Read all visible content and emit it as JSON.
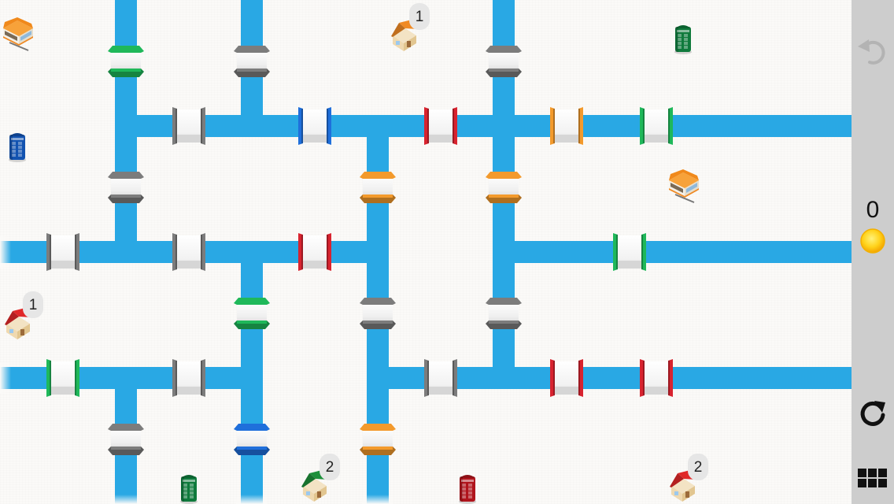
{
  "game": {
    "name": "",
    "colors": {
      "road": "#29a8e4",
      "gate_green": "#1fb85a",
      "gate_gray": "#7c7c7c",
      "gate_blue": "#1f6fdb",
      "gate_red": "#d8232f",
      "gate_orange": "#f39a2c",
      "sidebar": "#cdcdcd",
      "background": "#fbfaf8"
    },
    "houses": [
      {
        "id": "house-orange-top",
        "color": "orange",
        "count": "1"
      },
      {
        "id": "house-red-left",
        "color": "red",
        "count": "1"
      },
      {
        "id": "house-green-bottom",
        "color": "green",
        "count": "2"
      },
      {
        "id": "house-red-bottom-right",
        "color": "red",
        "count": "2"
      }
    ],
    "phone_booths": [
      {
        "id": "booth-green-top",
        "color": "green"
      },
      {
        "id": "booth-blue-left",
        "color": "blue"
      },
      {
        "id": "booth-green-bottom",
        "color": "green"
      },
      {
        "id": "booth-red-bottom",
        "color": "red"
      }
    ],
    "vehicles": [
      {
        "id": "bus-top-left",
        "color": "orange"
      },
      {
        "id": "bus-right",
        "color": "orange"
      }
    ]
  },
  "sidebar": {
    "undo_icon": "undo-icon",
    "coins": "0",
    "coin_icon": "coin-icon",
    "restart_icon": "restart-icon",
    "menu_icon": "grid-menu-icon"
  }
}
